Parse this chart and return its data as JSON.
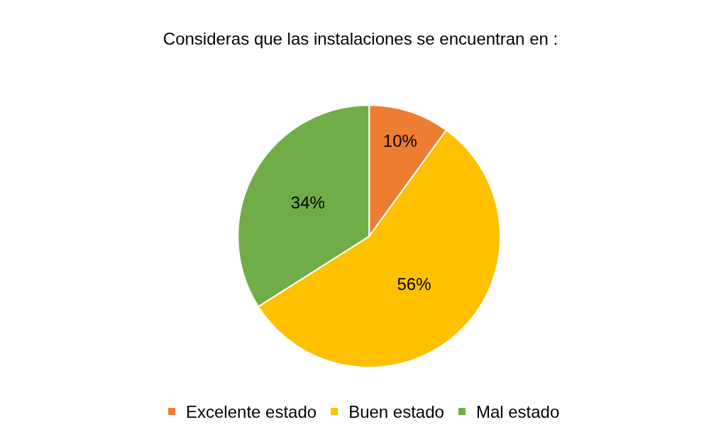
{
  "chart_data": {
    "type": "pie",
    "title": "Consideras que las instalaciones se encuentran en :",
    "categories": [
      "Excelente estado",
      "Buen estado",
      "Mal estado"
    ],
    "values": [
      10,
      56,
      34
    ],
    "colors": [
      "#ed7d31",
      "#ffc000",
      "#70ad47"
    ],
    "value_labels": [
      "10%",
      "56%",
      "34%"
    ],
    "legend": "bottom"
  }
}
